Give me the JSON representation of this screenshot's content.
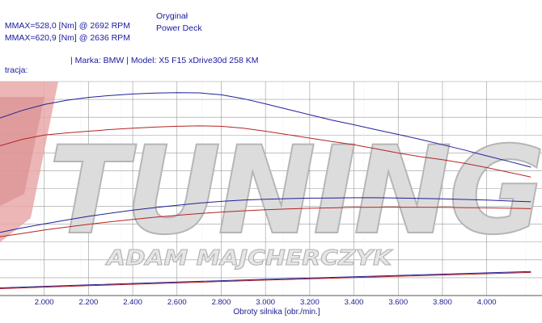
{
  "legend": [
    {
      "text": "MMAX=528,0 [Nm] @ 2692 RPM",
      "name": "Oryginał"
    },
    {
      "text": "MMAX=620,9 [Nm] @ 2636 RPM",
      "name": "Power Deck"
    }
  ],
  "registration": {
    "label": "tracja:",
    "vehicle": "| Marka: BMW | Model: X5 F15 xDrive30d 258 KM"
  },
  "watermark": {
    "brand": "TUNING",
    "author": "ADAM MAJCHERCZYK"
  },
  "colors": {
    "oryginal": "#b52424",
    "power_deck": "#20209a",
    "grid": "#9a9a9a",
    "axis": "#1a1a8c"
  },
  "chart_data": {
    "type": "line",
    "xlabel": "Obroty silnika [obr./min.]",
    "xlim": [
      1800,
      4250
    ],
    "ylim": [
      0,
      100
    ],
    "x_ticks": [
      2000,
      2200,
      2400,
      2600,
      2800,
      3000,
      3200,
      3400,
      3600,
      3800,
      4000
    ],
    "x_tick_labels": [
      "2.000",
      "2.200",
      "2.400",
      "2.600",
      "2.800",
      "3.000",
      "3.200",
      "3.400",
      "3.600",
      "3.800",
      "4.000"
    ],
    "y_gridlines": 12,
    "grid": true,
    "series": [
      {
        "name": "Power Deck",
        "kind": "torque",
        "color": "#20209a",
        "x": [
          1800,
          1900,
          2000,
          2100,
          2200,
          2300,
          2400,
          2500,
          2600,
          2700,
          2800,
          2900,
          3000,
          3100,
          3200,
          3300,
          3400,
          3500,
          3600,
          3700,
          3800,
          3900,
          4000,
          4100,
          4200
        ],
        "y": [
          83.0,
          86.5,
          89.3,
          91.2,
          92.6,
          93.5,
          94.2,
          94.6,
          94.8,
          94.7,
          93.8,
          92.0,
          89.6,
          87.0,
          84.5,
          82.0,
          79.8,
          77.5,
          75.3,
          73.0,
          70.5,
          68.0,
          65.3,
          62.7,
          60.0
        ]
      },
      {
        "name": "Oryginał",
        "kind": "torque",
        "color": "#b52424",
        "x": [
          1800,
          1900,
          2000,
          2100,
          2200,
          2300,
          2400,
          2500,
          2600,
          2700,
          2800,
          2900,
          3000,
          3100,
          3200,
          3300,
          3400,
          3500,
          3600,
          3700,
          3800,
          3900,
          4000,
          4100,
          4200
        ],
        "y": [
          70.0,
          73.0,
          75.0,
          76.0,
          76.8,
          77.6,
          78.2,
          78.7,
          79.1,
          79.3,
          79.1,
          78.2,
          76.8,
          75.2,
          73.6,
          72.0,
          70.5,
          68.6,
          66.6,
          64.9,
          63.5,
          61.8,
          59.8,
          57.6,
          55.4
        ]
      },
      {
        "name": "Power Deck",
        "kind": "power",
        "color": "#20209a",
        "x": [
          1800,
          1900,
          2000,
          2100,
          2200,
          2300,
          2400,
          2500,
          2600,
          2700,
          2800,
          2900,
          3000,
          3100,
          3200,
          3300,
          3400,
          3500,
          3600,
          3700,
          3800,
          3900,
          4000,
          4100,
          4200
        ],
        "y": [
          29.5,
          31.6,
          33.5,
          35.3,
          37.0,
          38.5,
          39.9,
          41.1,
          42.2,
          43.2,
          44.0,
          44.6,
          45.0,
          45.3,
          45.5,
          45.6,
          45.7,
          45.7,
          45.6,
          45.4,
          45.2,
          44.9,
          44.6,
          44.2,
          43.8
        ]
      },
      {
        "name": "Oryginał",
        "kind": "power",
        "color": "#b52424",
        "x": [
          1800,
          1900,
          2000,
          2100,
          2200,
          2300,
          2400,
          2500,
          2600,
          2700,
          2800,
          2900,
          3000,
          3100,
          3200,
          3300,
          3400,
          3500,
          3600,
          3700,
          3800,
          3900,
          4000,
          4100,
          4200
        ],
        "y": [
          27.5,
          29.0,
          30.6,
          32.0,
          33.3,
          34.5,
          35.6,
          36.6,
          37.5,
          38.3,
          39.0,
          39.6,
          40.1,
          40.5,
          40.8,
          41.0,
          41.2,
          41.3,
          41.3,
          41.3,
          41.2,
          41.1,
          41.0,
          40.8,
          40.6
        ]
      },
      {
        "name": "Power Deck",
        "kind": "loss",
        "color": "#20209a",
        "x": [
          1800,
          2200,
          2600,
          3000,
          3400,
          3800,
          4200
        ],
        "y": [
          3.6,
          5.0,
          6.3,
          7.6,
          8.8,
          10.0,
          11.2
        ]
      },
      {
        "name": "Oryginał",
        "kind": "loss",
        "color": "#b52424",
        "x": [
          1800,
          2200,
          2600,
          3000,
          3400,
          3800,
          4200
        ],
        "y": [
          3.2,
          4.6,
          5.9,
          7.2,
          8.4,
          9.6,
          10.8
        ]
      }
    ]
  }
}
